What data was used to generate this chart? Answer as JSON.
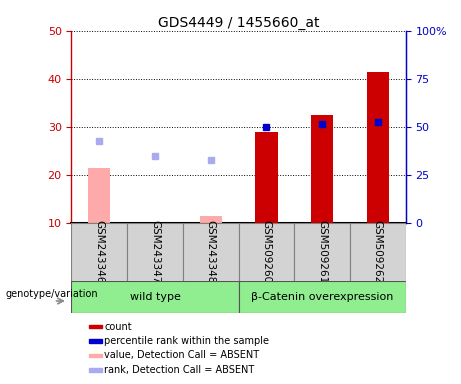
{
  "title": "GDS4449 / 1455660_at",
  "categories": [
    "GSM243346",
    "GSM243347",
    "GSM243348",
    "GSM509260",
    "GSM509261",
    "GSM509262"
  ],
  "bar_values": [
    21.5,
    null,
    11.5,
    29.0,
    32.5,
    41.5
  ],
  "bar_colors": [
    "#ffaaaa",
    null,
    "#ffaaaa",
    "#cc0000",
    "#cc0000",
    "#cc0000"
  ],
  "rank_dots": [
    null,
    null,
    null,
    30.0,
    30.5,
    31.0
  ],
  "rank_dot_colors": [
    null,
    null,
    null,
    "#0000cc",
    "#0000cc",
    "#0000cc"
  ],
  "absent_rank_dots": [
    27.0,
    24.0,
    23.0,
    null,
    null,
    null
  ],
  "absent_rank_colors": [
    "#aaaaee",
    "#aaaaee",
    "#aaaaee",
    null,
    null,
    null
  ],
  "ylim_left": [
    10,
    50
  ],
  "ylim_right": [
    0,
    100
  ],
  "yticks_left": [
    10,
    20,
    30,
    40,
    50
  ],
  "yticks_right": [
    0,
    25,
    50,
    75,
    100
  ],
  "ytick_labels_right": [
    "0",
    "25",
    "50",
    "75",
    "100%"
  ],
  "left_axis_color": "#cc0000",
  "right_axis_color": "#0000cc",
  "plot_bg_color": "#ffffff",
  "grid_color": "#000000",
  "sample_box_color": "#d3d3d3",
  "group_box_color": "#90ee90",
  "legend_items": [
    {
      "label": "count",
      "color": "#cc0000"
    },
    {
      "label": "percentile rank within the sample",
      "color": "#0000cc"
    },
    {
      "label": "value, Detection Call = ABSENT",
      "color": "#ffaaaa"
    },
    {
      "label": "rank, Detection Call = ABSENT",
      "color": "#aaaaee"
    }
  ],
  "bottom_group_labels": [
    "wild type",
    "β-Catenin overexpression"
  ],
  "genotype_label": "genotype/variation",
  "bar_width": 0.4,
  "dot_size": 5,
  "title_fontsize": 10,
  "label_fontsize": 7.5,
  "legend_fontsize": 7,
  "group_label_fontsize": 8,
  "geno_fontsize": 7
}
